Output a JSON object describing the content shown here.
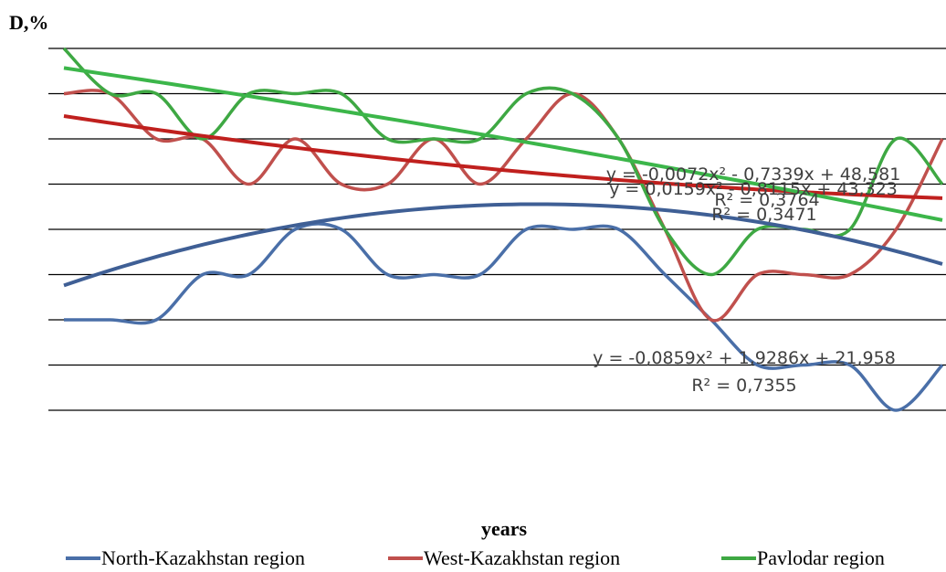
{
  "chart_data": {
    "type": "line",
    "title": "D,%",
    "x_label": "years",
    "categories": [
      null,
      null,
      null,
      null,
      null,
      null,
      null,
      null,
      null,
      null,
      null,
      null,
      null,
      null,
      null,
      null,
      null,
      null,
      null,
      null
    ],
    "ylim": [
      10,
      50
    ],
    "yticks": [
      10,
      15,
      20,
      25,
      30,
      35,
      40,
      45,
      50
    ],
    "grid": true,
    "legend": "bottom",
    "series": [
      {
        "name": "North-Kazakhstan region",
        "color": "#4a6fa8",
        "values": [
          20,
          20,
          20,
          25,
          25,
          30,
          30,
          25,
          25,
          25,
          30,
          30,
          30,
          25,
          20,
          15,
          15,
          15,
          10,
          15
        ],
        "trend": {
          "a": -0.0859,
          "b": 1.9286,
          "c": 21.958,
          "color": "#3f5f95",
          "label": "y = -0,0859x² + 1,9286x + 21,958",
          "r2_label": "R² = 0,7355"
        }
      },
      {
        "name": "West-Kazakhstan region",
        "color": "#c0504d",
        "values": [
          45,
          45,
          40,
          40,
          35,
          40,
          35,
          35,
          40,
          35,
          40,
          45,
          40,
          30,
          20,
          25,
          25,
          25,
          30,
          40
        ],
        "trend": {
          "a": 0.0159,
          "b": -0.8115,
          "c": 43.323,
          "color": "#c0201e",
          "label": "y = 0,0159x² - 0,8115x + 43,323",
          "r2_label": "R² = 0,3471"
        }
      },
      {
        "name": "Pavlodar region",
        "color": "#3ea843",
        "values": [
          50,
          45,
          45,
          40,
          45,
          45,
          45,
          40,
          40,
          40,
          45,
          45,
          40,
          30,
          25,
          30,
          30,
          30,
          40,
          35
        ],
        "trend": {
          "a": -0.0072,
          "b": -0.7339,
          "c": 48.581,
          "color": "#3cb64a",
          "label": "y = -0,0072x² - 0,7339x + 48,581",
          "r2_label": "R² = 0,3764"
        }
      }
    ]
  }
}
